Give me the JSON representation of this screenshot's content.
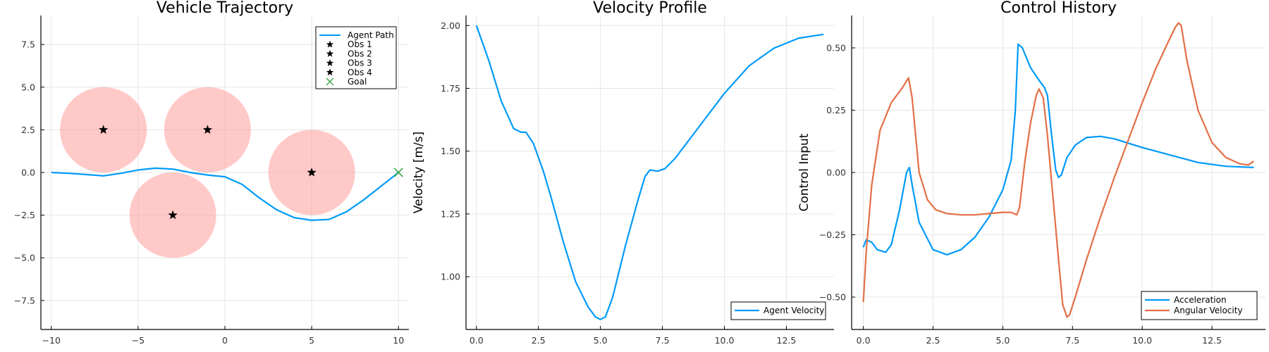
{
  "chart_data": [
    {
      "type": "scatter",
      "title": "Vehicle Trajectory",
      "xlabel": "",
      "ylabel": "",
      "xlim": [
        -10.6,
        10.6
      ],
      "ylim": [
        -9.2,
        9.2
      ],
      "xticks": [
        -10,
        -5,
        0,
        5,
        10
      ],
      "xtick_labels": [
        "−10",
        "−5",
        "0",
        "5",
        "10"
      ],
      "yticks": [
        -7.5,
        -5.0,
        -2.5,
        0.0,
        2.5,
        5.0,
        7.5
      ],
      "ytick_labels": [
        "−7.5",
        "−5.0",
        "−2.5",
        "0.0",
        "2.5",
        "5.0",
        "7.5"
      ],
      "grid": true,
      "legend_position": "top-right",
      "obstacle_radius": 2.5,
      "obstacle_fill": "#ff9d99",
      "path_color": "#009af9",
      "goal_color": "#3da44d",
      "series": [
        {
          "name": "Agent Path",
          "kind": "line",
          "x": [
            -10,
            -9,
            -8,
            -7,
            -6,
            -5,
            -4,
            -3,
            -2,
            -1,
            0,
            1,
            2,
            3,
            4,
            5,
            6,
            7,
            8,
            9,
            10
          ],
          "y": [
            0.0,
            -0.05,
            -0.12,
            -0.2,
            -0.05,
            0.15,
            0.25,
            0.2,
            0.0,
            -0.15,
            -0.25,
            -0.7,
            -1.5,
            -2.2,
            -2.65,
            -2.8,
            -2.75,
            -2.3,
            -1.6,
            -0.8,
            0.0
          ]
        },
        {
          "name": "Obs 1",
          "kind": "star",
          "x": [
            -7
          ],
          "y": [
            2.5
          ]
        },
        {
          "name": "Obs 2",
          "kind": "star",
          "x": [
            -1
          ],
          "y": [
            2.5
          ]
        },
        {
          "name": "Obs 3",
          "kind": "star",
          "x": [
            5
          ],
          "y": [
            0
          ]
        },
        {
          "name": "Obs 4",
          "kind": "star",
          "x": [
            -3
          ],
          "y": [
            -2.5
          ]
        },
        {
          "name": "Goal",
          "kind": "cross",
          "x": [
            10
          ],
          "y": [
            0
          ]
        }
      ]
    },
    {
      "type": "line",
      "title": "Velocity Profile",
      "xlabel": "",
      "ylabel": "Velocity [m/s]",
      "xlim": [
        -0.42,
        14.42
      ],
      "ylim": [
        0.79,
        2.04
      ],
      "xticks": [
        0,
        2.5,
        5,
        7.5,
        10,
        12.5
      ],
      "xtick_labels": [
        "0.0",
        "2.5",
        "5.0",
        "7.5",
        "10.0",
        "12.5"
      ],
      "yticks": [
        1.0,
        1.25,
        1.5,
        1.75,
        2.0
      ],
      "ytick_labels": [
        "1.00",
        "1.25",
        "1.50",
        "1.75",
        "2.00"
      ],
      "grid": true,
      "legend_position": "bottom-right",
      "series": [
        {
          "name": "Agent Velocity",
          "color": "#009af9",
          "x": [
            0,
            0.5,
            1.0,
            1.5,
            1.8,
            2.0,
            2.3,
            2.7,
            3.0,
            3.5,
            4.0,
            4.5,
            4.8,
            5.0,
            5.2,
            5.5,
            6.0,
            6.5,
            6.8,
            7.0,
            7.3,
            7.6,
            8.0,
            9.0,
            10.0,
            11.0,
            12.0,
            13.0,
            14.0
          ],
          "y": [
            2.0,
            1.86,
            1.7,
            1.59,
            1.575,
            1.575,
            1.53,
            1.42,
            1.32,
            1.14,
            0.98,
            0.88,
            0.84,
            0.83,
            0.84,
            0.92,
            1.12,
            1.3,
            1.4,
            1.425,
            1.42,
            1.43,
            1.47,
            1.6,
            1.73,
            1.84,
            1.91,
            1.95,
            1.965
          ]
        }
      ]
    },
    {
      "type": "line",
      "title": "Control History",
      "xlabel": "",
      "ylabel": "Control Input",
      "xlim": [
        -0.42,
        14.42
      ],
      "ylim": [
        -0.63,
        0.63
      ],
      "xticks": [
        0,
        2.5,
        5,
        7.5,
        10,
        12.5
      ],
      "xtick_labels": [
        "0.0",
        "2.5",
        "5.0",
        "7.5",
        "10.0",
        "12.5"
      ],
      "yticks": [
        -0.5,
        -0.25,
        0.0,
        0.25,
        0.5
      ],
      "ytick_labels": [
        "−0.50",
        "−0.25",
        "0.00",
        "0.25",
        "0.50"
      ],
      "grid": true,
      "legend_position": "bottom-right",
      "series": [
        {
          "name": "Acceleration",
          "color": "#009af9",
          "x": [
            0,
            0.1,
            0.3,
            0.5,
            0.8,
            1.0,
            1.3,
            1.55,
            1.65,
            1.75,
            2.0,
            2.5,
            3.0,
            3.5,
            4.0,
            4.5,
            5.0,
            5.3,
            5.45,
            5.55,
            5.7,
            6.0,
            6.3,
            6.5,
            6.6,
            6.75,
            6.9,
            7.0,
            7.1,
            7.3,
            7.6,
            8.0,
            8.5,
            9.0,
            10.0,
            11.0,
            12.0,
            13.0,
            14.0
          ],
          "y": [
            -0.3,
            -0.27,
            -0.28,
            -0.31,
            -0.32,
            -0.29,
            -0.15,
            0.0,
            0.02,
            -0.05,
            -0.2,
            -0.31,
            -0.33,
            -0.31,
            -0.26,
            -0.18,
            -0.07,
            0.05,
            0.25,
            0.515,
            0.5,
            0.42,
            0.37,
            0.34,
            0.31,
            0.15,
            0.01,
            -0.02,
            -0.01,
            0.06,
            0.11,
            0.14,
            0.145,
            0.135,
            0.1,
            0.07,
            0.04,
            0.025,
            0.02
          ]
        },
        {
          "name": "Angular Velocity",
          "color": "#e26f46",
          "x": [
            0,
            0.1,
            0.3,
            0.6,
            1.0,
            1.4,
            1.62,
            1.75,
            2.0,
            2.3,
            2.6,
            3.0,
            3.5,
            4.0,
            4.5,
            5.0,
            5.3,
            5.5,
            5.6,
            5.8,
            6.0,
            6.2,
            6.3,
            6.45,
            6.6,
            6.8,
            7.0,
            7.15,
            7.3,
            7.4,
            7.6,
            8.0,
            8.5,
            9.0,
            9.5,
            10.0,
            10.5,
            11.0,
            11.2,
            11.3,
            11.4,
            11.6,
            12.0,
            12.5,
            13.0,
            13.5,
            13.8,
            14.0
          ],
          "y": [
            -0.52,
            -0.32,
            -0.05,
            0.17,
            0.28,
            0.34,
            0.38,
            0.3,
            0.0,
            -0.11,
            -0.15,
            -0.165,
            -0.17,
            -0.17,
            -0.165,
            -0.16,
            -0.16,
            -0.17,
            -0.14,
            0.05,
            0.2,
            0.31,
            0.335,
            0.3,
            0.15,
            -0.1,
            -0.35,
            -0.53,
            -0.58,
            -0.57,
            -0.5,
            -0.35,
            -0.18,
            -0.02,
            0.13,
            0.28,
            0.42,
            0.54,
            0.585,
            0.6,
            0.59,
            0.45,
            0.25,
            0.12,
            0.06,
            0.035,
            0.03,
            0.045
          ]
        }
      ]
    }
  ]
}
